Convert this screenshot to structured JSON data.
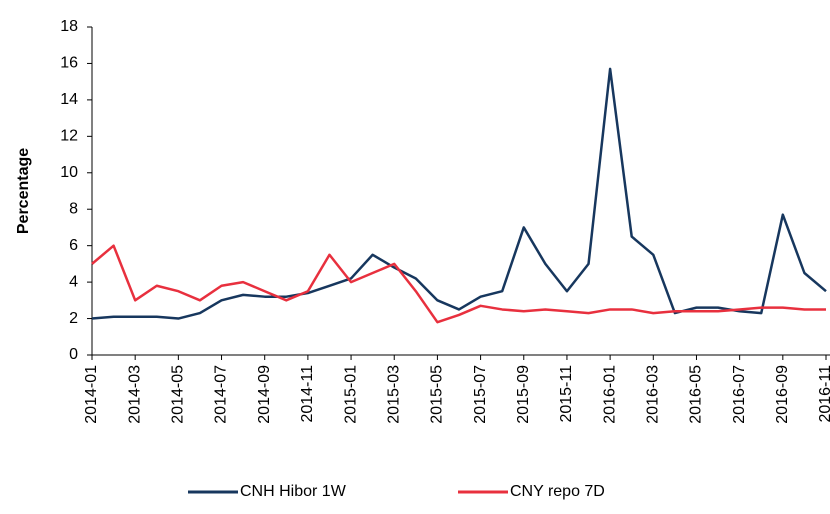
{
  "chart_data": {
    "type": "line",
    "ylabel": "Percentage",
    "categories": [
      "2014-01",
      null,
      "2014-03",
      null,
      "2014-05",
      null,
      "2014-07",
      null,
      "2014-09",
      null,
      "2014-11",
      null,
      "2015-01",
      null,
      "2015-03",
      null,
      "2015-05",
      null,
      "2015-07",
      null,
      "2015-09",
      null,
      "2015-11",
      null,
      "2016-01",
      null,
      "2016-03",
      null,
      "2016-05",
      null,
      "2016-07",
      null,
      "2016-09",
      null,
      "2016-11"
    ],
    "series": [
      {
        "name": "CNH Hibor 1W",
        "color": "#17375e",
        "values": [
          2.0,
          2.1,
          2.1,
          2.1,
          2.0,
          2.3,
          3.0,
          3.3,
          3.2,
          3.2,
          3.4,
          3.8,
          4.2,
          5.5,
          4.8,
          4.2,
          3.0,
          2.5,
          3.2,
          3.5,
          7.0,
          5.0,
          3.5,
          5.0,
          15.7,
          6.5,
          5.5,
          2.3,
          2.6,
          2.6,
          2.4,
          2.3,
          7.7,
          4.5,
          3.5
        ]
      },
      {
        "name": "CNY repo 7D",
        "color": "#e8303e",
        "values": [
          5.0,
          6.0,
          3.0,
          3.8,
          3.5,
          3.0,
          3.8,
          4.0,
          3.5,
          3.0,
          3.5,
          5.5,
          4.0,
          4.5,
          5.0,
          3.5,
          1.8,
          2.2,
          2.7,
          2.5,
          2.4,
          2.5,
          2.4,
          2.3,
          2.5,
          2.5,
          2.3,
          2.4,
          2.4,
          2.4,
          2.5,
          2.6,
          2.6,
          2.5,
          2.5
        ]
      }
    ],
    "ylim": [
      0,
      18
    ],
    "yticks": [
      0,
      2,
      4,
      6,
      8,
      10,
      12,
      14,
      16,
      18
    ],
    "grid": false,
    "legend": "bottom"
  }
}
